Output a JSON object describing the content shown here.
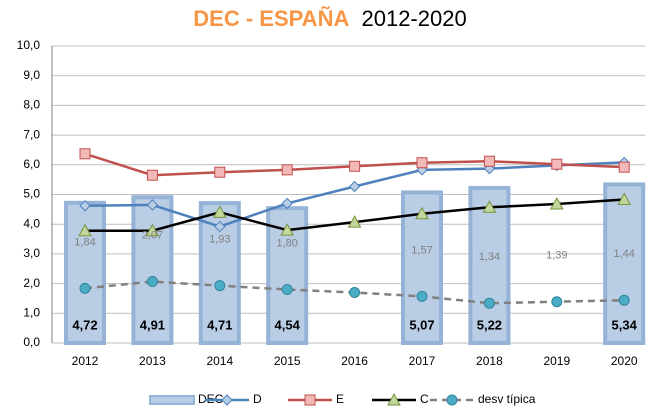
{
  "chart_data": {
    "type": "bar-line",
    "title": [
      "DEC - ESPAÑA",
      "2012-2020"
    ],
    "categories": [
      "2012",
      "2013",
      "2014",
      "2015",
      "2016",
      "2017",
      "2018",
      "2019",
      "2020"
    ],
    "series": [
      {
        "name": "DEC",
        "type": "bar",
        "color": "#b9cde5",
        "values": [
          4.72,
          4.91,
          4.71,
          4.54,
          null,
          5.07,
          5.22,
          null,
          5.34
        ],
        "value_labels": [
          "4,72",
          "4,91",
          "4,71",
          "4,54",
          null,
          "5,07",
          "5,22",
          null,
          "5,34"
        ]
      },
      {
        "name": "D",
        "type": "line",
        "color": "#4f81bd",
        "marker": "diamond",
        "values": [
          4.62,
          4.65,
          3.92,
          4.7,
          5.27,
          5.83,
          5.87,
          5.98,
          6.08
        ]
      },
      {
        "name": "E",
        "type": "line",
        "color": "#c0504d",
        "marker": "square",
        "values": [
          6.37,
          5.65,
          5.75,
          5.83,
          5.95,
          6.07,
          6.12,
          6.02,
          5.92
        ]
      },
      {
        "name": "C",
        "type": "line",
        "color": "#000000",
        "marker": "triangle",
        "values": [
          3.78,
          3.78,
          4.4,
          3.8,
          4.07,
          4.35,
          4.57,
          4.68,
          4.83
        ]
      },
      {
        "name": "desv típica",
        "type": "line",
        "color": "#808080",
        "marker": "circle",
        "dashed": true,
        "values": [
          1.84,
          2.07,
          1.93,
          1.8,
          1.7,
          1.57,
          1.34,
          1.39,
          1.44
        ],
        "value_labels": [
          "1,84",
          "2,07",
          "1,93",
          "1,80",
          null,
          "1,57",
          "1,34",
          "1,39",
          "1,44"
        ]
      }
    ],
    "ylim": [
      0,
      10
    ],
    "yticks": [
      {
        "value": 0,
        "label": "0,0"
      },
      {
        "value": 1,
        "label": "1,0"
      },
      {
        "value": 2,
        "label": "2,0"
      },
      {
        "value": 3,
        "label": "3,0"
      },
      {
        "value": 4,
        "label": "4,0"
      },
      {
        "value": 5,
        "label": "5,0"
      },
      {
        "value": 6,
        "label": "6,0"
      },
      {
        "value": 7,
        "label": "7,0"
      },
      {
        "value": 8,
        "label": "8,0"
      },
      {
        "value": 9,
        "label": "9,0"
      },
      {
        "value": 10,
        "label": "10,0"
      }
    ],
    "grid": true,
    "legend": "bottom"
  }
}
